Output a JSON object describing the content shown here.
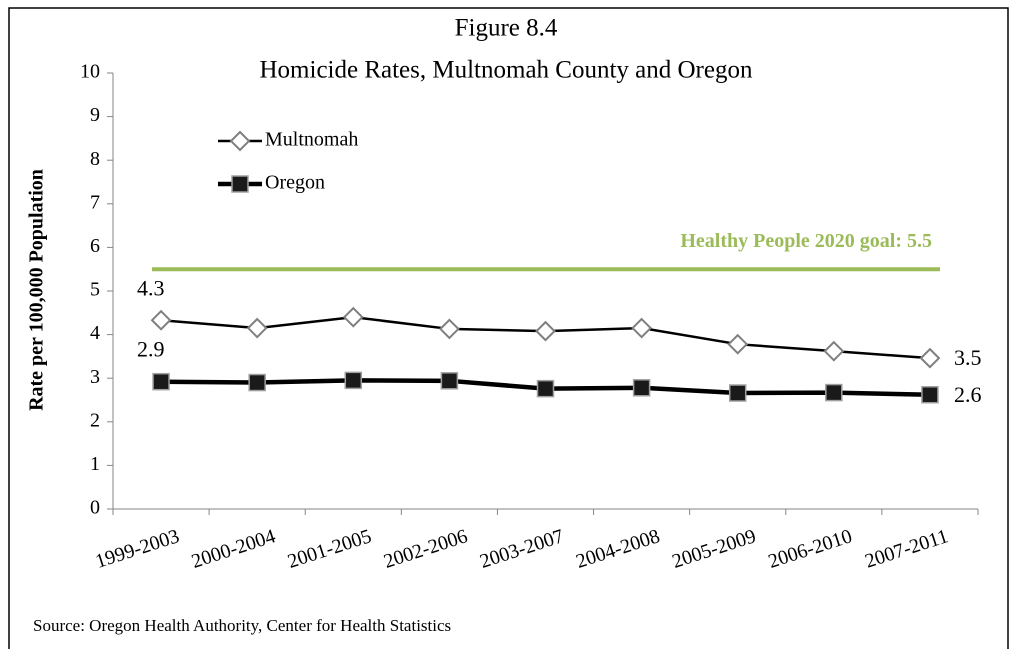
{
  "chart_data": {
    "type": "line",
    "title": "Figure 8.4",
    "subtitle": "Homicide Rates, Multnomah County and Oregon",
    "y_axis_label": "Rate per 100,000 Population",
    "source": "Source: Oregon Health Authority, Center for Health Statistics",
    "categories": [
      "1999-2003",
      "2000-2004",
      "2001-2005",
      "2002-2006",
      "2003-2007",
      "2004-2008",
      "2005-2009",
      "2006-2010",
      "2007-2011"
    ],
    "series": [
      {
        "name": "Multnomah",
        "color": "#000000",
        "values": [
          4.33,
          4.15,
          4.4,
          4.13,
          4.08,
          4.15,
          3.78,
          3.62,
          3.46
        ],
        "value_labels": [
          "4.3",
          null,
          null,
          null,
          null,
          null,
          null,
          null,
          "3.5"
        ]
      },
      {
        "name": "Oregon",
        "color": "#000000",
        "values": [
          2.92,
          2.9,
          2.95,
          2.94,
          2.76,
          2.78,
          2.66,
          2.67,
          2.62
        ],
        "value_labels": [
          "2.9",
          null,
          null,
          null,
          null,
          null,
          null,
          null,
          "2.6"
        ]
      }
    ],
    "goal": {
      "label": "Healthy People 2020 goal: 5.5",
      "value": 5.5,
      "color": "#9bbb59"
    },
    "ylim": [
      0,
      10
    ],
    "yticks": [
      0,
      1,
      2,
      3,
      4,
      5,
      6,
      7,
      8,
      9,
      10
    ],
    "grid": false,
    "legend": "upper left"
  }
}
